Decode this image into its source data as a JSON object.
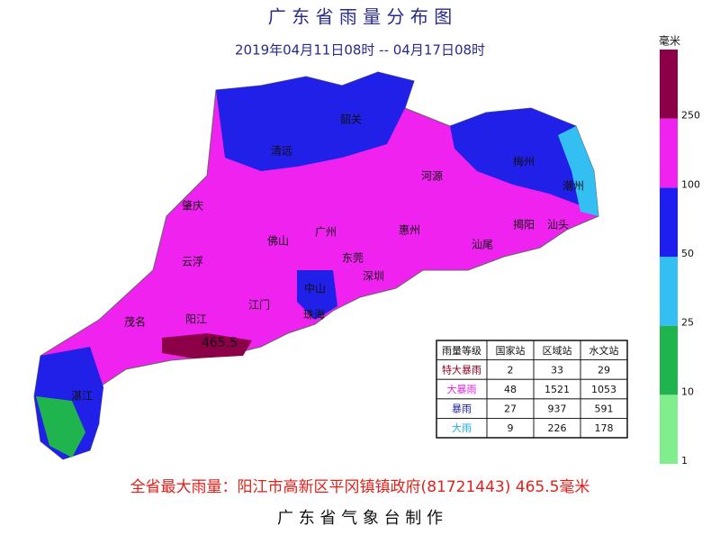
{
  "header": {
    "title": "广 东 省 雨 量 分 布 图",
    "subtitle": "2019年04月11日08时 -- 04月17日08时"
  },
  "legend": {
    "unit": "毫米",
    "ticks": [
      1,
      10,
      25,
      50,
      100,
      250
    ],
    "colors": [
      "#80ee8c",
      "#1fb44e",
      "#33bff2",
      "#1e1ef0",
      "#f022f0",
      "#8c0048"
    ]
  },
  "cities": [
    "韶关",
    "清远",
    "梅州",
    "河源",
    "潮州",
    "肇庆",
    "揭阳",
    "汕头",
    "佛山",
    "广州",
    "惠州",
    "云浮",
    "汕尾",
    "东莞",
    "深圳",
    "中山",
    "江门",
    "茂名",
    "阳江",
    "珠海",
    "湛江"
  ],
  "max_marker": "465.5",
  "table": {
    "header": [
      "雨量等级",
      "国家站",
      "区域站",
      "水文站"
    ],
    "rows": [
      [
        "特大暴雨",
        "2",
        "33",
        "29"
      ],
      [
        "大暴雨",
        "48",
        "1521",
        "1053"
      ],
      [
        "暴雨",
        "27",
        "937",
        "591"
      ],
      [
        "大雨",
        "9",
        "226",
        "178"
      ]
    ],
    "row_colors": [
      "#8c0020",
      "#e020e0",
      "#1e1ea0",
      "#20b0e0"
    ]
  },
  "footer": {
    "max_rain": "全省最大雨量：阳江市高新区平冈镇镇政府(81721443) 465.5毫米",
    "credit": "广 东 省 气 象 台 制 作"
  }
}
